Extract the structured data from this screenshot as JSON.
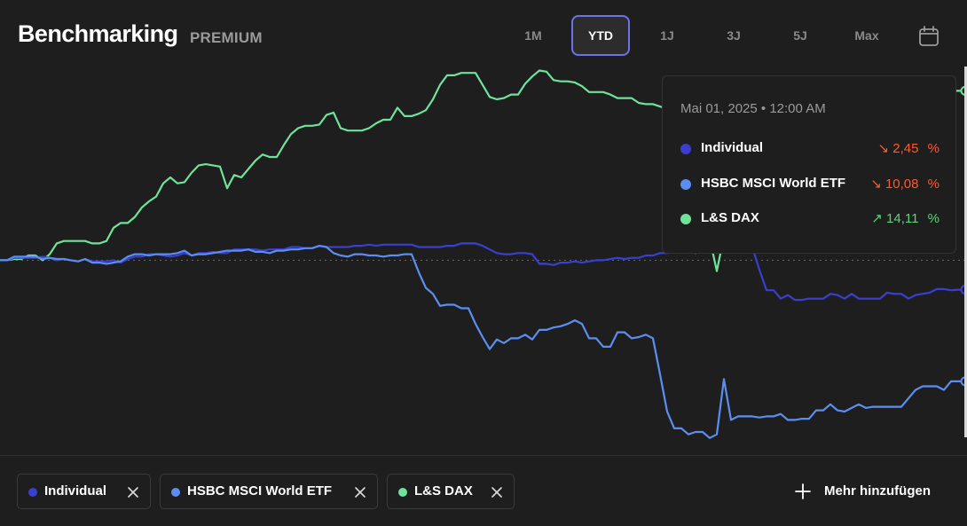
{
  "header": {
    "title": "Benchmarking",
    "badge": "PREMIUM"
  },
  "range_tabs": [
    {
      "label": "1M",
      "active": false
    },
    {
      "label": "YTD",
      "active": true
    },
    {
      "label": "1J",
      "active": false
    },
    {
      "label": "3J",
      "active": false
    },
    {
      "label": "5J",
      "active": false
    },
    {
      "label": "Max",
      "active": false
    }
  ],
  "calendar_icon": "calendar-icon",
  "colors": {
    "individual": "#3a3fd0",
    "hsbc": "#5b8ef0",
    "dax": "#6fe39a",
    "negative": "#ff5a2e",
    "positive": "#5dd47b",
    "active_tab_border": "#6b73e8",
    "background": "#1e1e1e"
  },
  "tooltip": {
    "date": "Mai 01, 2025 • 12:00 AM",
    "rows": [
      {
        "name": "Individual",
        "arrow": "↘",
        "value": "2,45",
        "unit": "%",
        "trend": "down"
      },
      {
        "name": "HSBC MSCI World ETF",
        "arrow": "↘",
        "value": "10,08",
        "unit": "%",
        "trend": "down"
      },
      {
        "name": "L&S DAX",
        "arrow": "↗",
        "value": "14,11",
        "unit": "%",
        "trend": "up"
      }
    ]
  },
  "chart_data": {
    "type": "line",
    "x": [
      0,
      1,
      2,
      3,
      4,
      5,
      6,
      7,
      8,
      9,
      10,
      11,
      12,
      13,
      14,
      15,
      16,
      17,
      18,
      19,
      20,
      21,
      22,
      23,
      24,
      25,
      26,
      27,
      28,
      29,
      30,
      31,
      32,
      33,
      34,
      35,
      36,
      37,
      38,
      39,
      40,
      41,
      42,
      43,
      44,
      45,
      46,
      47,
      48,
      49,
      50,
      51,
      52,
      53,
      54,
      55,
      56,
      57,
      58,
      59,
      60,
      61,
      62,
      63,
      64,
      65,
      66,
      67,
      68,
      69,
      70,
      71,
      72,
      73,
      74,
      75,
      76,
      77,
      78,
      79,
      80,
      81,
      82,
      83,
      84,
      85,
      86,
      87,
      88,
      89,
      90,
      91,
      92,
      93,
      94,
      95,
      96,
      97,
      98,
      99,
      100,
      101,
      102,
      103,
      104,
      105,
      106,
      107,
      108,
      109,
      110,
      111,
      112,
      113,
      114,
      115,
      116,
      117,
      118,
      119,
      120,
      121,
      122,
      123,
      124,
      125,
      126,
      127,
      128,
      129,
      130,
      131,
      132,
      133,
      134,
      135,
      136
    ],
    "series": [
      {
        "name": "Individual",
        "values": [
          0,
          0,
          0.2,
          0.2,
          0.2,
          0.2,
          0.3,
          0.2,
          0,
          0.1,
          0,
          -0.1,
          0.1,
          -0.1,
          -0.1,
          -0.1,
          0,
          -0.2,
          0.1,
          0.3,
          0.3,
          0.5,
          0.5,
          0.4,
          0.3,
          0.4,
          0.6,
          0.4,
          0.6,
          0.6,
          0.7,
          0.6,
          0.6,
          0.9,
          0.9,
          0.9,
          0.9,
          0.8,
          0.9,
          0.9,
          0.9,
          1.1,
          1.1,
          1.0,
          1.0,
          1.2,
          1.1,
          1.1,
          1.1,
          1.1,
          1.2,
          1.2,
          1.3,
          1.2,
          1.3,
          1.3,
          1.3,
          1.3,
          1.3,
          1.1,
          1.1,
          1.1,
          1.1,
          1.2,
          1.2,
          1.4,
          1.4,
          1.4,
          1.2,
          0.9,
          0.6,
          0.5,
          0.5,
          0.6,
          0.6,
          0.5,
          -0.3,
          -0.3,
          -0.4,
          -0.2,
          -0.2,
          -0.1,
          -0.2,
          -0.1,
          0.0,
          0.0,
          0.1,
          0.2,
          0.1,
          0.2,
          0.2,
          0.4,
          0.4,
          0.6,
          0.6,
          0.8,
          0.8,
          0.9,
          1.0,
          1.0,
          1.0,
          0.9,
          0.8,
          0.7,
          0.8,
          1.0,
          1.1,
          -0.8,
          -2.5,
          -2.5,
          -3.2,
          -2.9,
          -3.3,
          -3.3,
          -3.2,
          -3.2,
          -3.2,
          -2.8,
          -2.9,
          -3.2,
          -2.8,
          -3.2,
          -3.2,
          -3.2,
          -3.2,
          -2.7,
          -2.8,
          -2.8,
          -3.2,
          -2.9,
          -2.8,
          -2.7,
          -2.4,
          -2.4,
          -2.5,
          -2.45,
          -2.45
        ],
        "color": "#3a3fd0"
      },
      {
        "name": "HSBC MSCI World ETF",
        "values": [
          0,
          0,
          0.3,
          0.3,
          0.3,
          0.3,
          0.1,
          0.2,
          0.1,
          0.1,
          0,
          -0.1,
          0.1,
          -0.2,
          -0.2,
          -0.3,
          -0.2,
          -0.1,
          0.3,
          0.5,
          0.5,
          0.4,
          0.5,
          0.5,
          0.5,
          0.6,
          0.8,
          0.4,
          0.5,
          0.5,
          0.6,
          0.7,
          0.8,
          0.8,
          0.8,
          0.9,
          0.7,
          0.7,
          0.6,
          0.8,
          0.8,
          0.9,
          0.9,
          1.0,
          1.0,
          1.2,
          1.1,
          0.6,
          0.4,
          0.3,
          0.5,
          0.5,
          0.4,
          0.4,
          0.3,
          0.4,
          0.4,
          0.5,
          0.5,
          -1.0,
          -2.3,
          -2.8,
          -3.8,
          -3.7,
          -3.7,
          -4.0,
          -4.0,
          -5.3,
          -6.4,
          -7.4,
          -6.6,
          -6.9,
          -6.5,
          -6.5,
          -6.2,
          -6.6,
          -5.8,
          -5.8,
          -5.6,
          -5.5,
          -5.3,
          -5.0,
          -5.3,
          -6.5,
          -6.5,
          -7.2,
          -7.2,
          -6.0,
          -6.0,
          -6.5,
          -6.4,
          -6.2,
          -6.5,
          -9.5,
          -12.6,
          -14.0,
          -14.0,
          -14.5,
          -14.3,
          -14.3,
          -14.8,
          -14.5,
          -9.9,
          -13.3,
          -13.0,
          -13.0,
          -13.0,
          -13.1,
          -13.0,
          -13.0,
          -12.8,
          -13.3,
          -13.3,
          -13.2,
          -13.2,
          -12.5,
          -12.5,
          -12.0,
          -12.5,
          -12.6,
          -12.3,
          -12.0,
          -12.3,
          -12.2,
          -12.2,
          -12.2,
          -12.2,
          -12.2,
          -11.5,
          -10.8,
          -10.5,
          -10.5,
          -10.5,
          -10.8,
          -10.08,
          -10.08,
          -10.08
        ],
        "color": "#5b8ef0"
      },
      {
        "name": "L&S DAX",
        "values": [
          0,
          0,
          0.1,
          0.1,
          0.4,
          0.4,
          0.0,
          0.5,
          1.4,
          1.6,
          1.6,
          1.6,
          1.6,
          1.4,
          1.4,
          1.6,
          2.7,
          3.1,
          3.1,
          3.6,
          4.4,
          4.9,
          5.3,
          6.4,
          6.9,
          6.4,
          6.5,
          7.3,
          7.9,
          8.0,
          7.9,
          7.8,
          6.0,
          7.1,
          6.9,
          7.6,
          8.3,
          8.8,
          8.6,
          8.6,
          9.6,
          10.5,
          11.0,
          11.2,
          11.2,
          11.3,
          12.1,
          12.3,
          11.0,
          10.8,
          10.8,
          10.8,
          11.0,
          11.4,
          11.7,
          11.7,
          12.7,
          12.0,
          12.0,
          12.2,
          12.5,
          13.4,
          14.6,
          15.4,
          15.4,
          15.6,
          15.6,
          15.6,
          14.6,
          13.6,
          13.4,
          13.5,
          13.8,
          13.8,
          14.7,
          15.3,
          15.8,
          15.7,
          15.0,
          14.9,
          14.9,
          14.8,
          14.5,
          14.0,
          14.0,
          14.0,
          13.8,
          13.5,
          13.5,
          13.5,
          13.1,
          13.0,
          13.0,
          12.8,
          12.6,
          7.0,
          2.0,
          1.5,
          0.6,
          1.5,
          1.8,
          -0.9,
          2.0,
          2.0,
          2.0,
          2.0,
          2.0,
          2.0,
          2.0,
          2.0,
          2.0,
          2.0,
          2.0,
          2.0,
          2.0,
          2.0,
          2.0,
          2.0,
          2.0,
          2.0,
          2.0,
          2.0,
          2.0,
          2.0,
          2.0,
          2.0,
          2.0,
          2.0,
          2.0,
          2.0,
          2.0,
          2.0,
          2.0,
          2.0,
          14.11,
          14.11,
          14.11
        ],
        "color": "#6fe39a"
      }
    ],
    "baseline": 0,
    "ylim": [
      -16,
      16.5
    ],
    "grid": false,
    "legend": "bottom"
  },
  "legend_chips": [
    {
      "label": "Individual",
      "close_icon": "close-icon"
    },
    {
      "label": "HSBC MSCI World ETF",
      "close_icon": "close-icon"
    },
    {
      "label": "L&S DAX",
      "close_icon": "close-icon"
    }
  ],
  "add_more": {
    "label": "Mehr hinzufügen",
    "icon": "plus-icon"
  }
}
